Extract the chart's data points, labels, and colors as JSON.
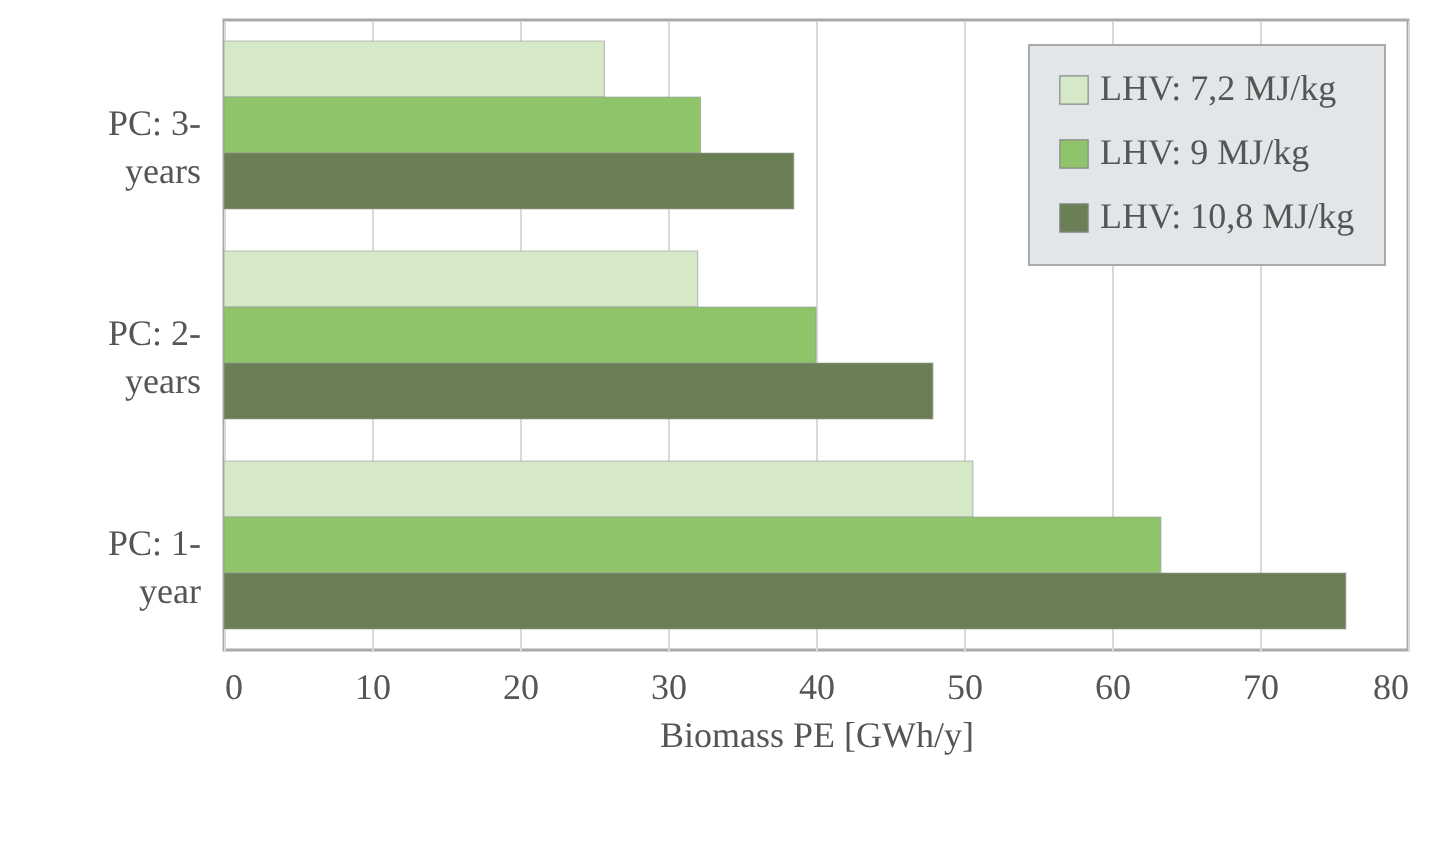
{
  "chart_data": {
    "type": "bar",
    "orientation": "horizontal",
    "xlabel": "Biomass PE [GWh/y]",
    "categories": [
      "PC: 3-years",
      "PC: 2-years",
      "PC: 1-year"
    ],
    "series": [
      {
        "name": "LHV: 7,2 MJ/kg",
        "color": "#d5e8c8",
        "values": [
          25.7,
          32.0,
          50.6
        ]
      },
      {
        "name": "LHV: 9 MJ/kg",
        "color": "#8fc46b",
        "values": [
          32.2,
          40.0,
          63.3
        ]
      },
      {
        "name": "LHV: 10,8 MJ/kg",
        "color": "#6a7f55",
        "values": [
          38.5,
          47.9,
          75.8
        ]
      }
    ],
    "xlim": [
      0,
      80
    ],
    "xticks": [
      0,
      10,
      20,
      30,
      40,
      50,
      60,
      70,
      80
    ],
    "grid": "x",
    "legend": "top right"
  }
}
